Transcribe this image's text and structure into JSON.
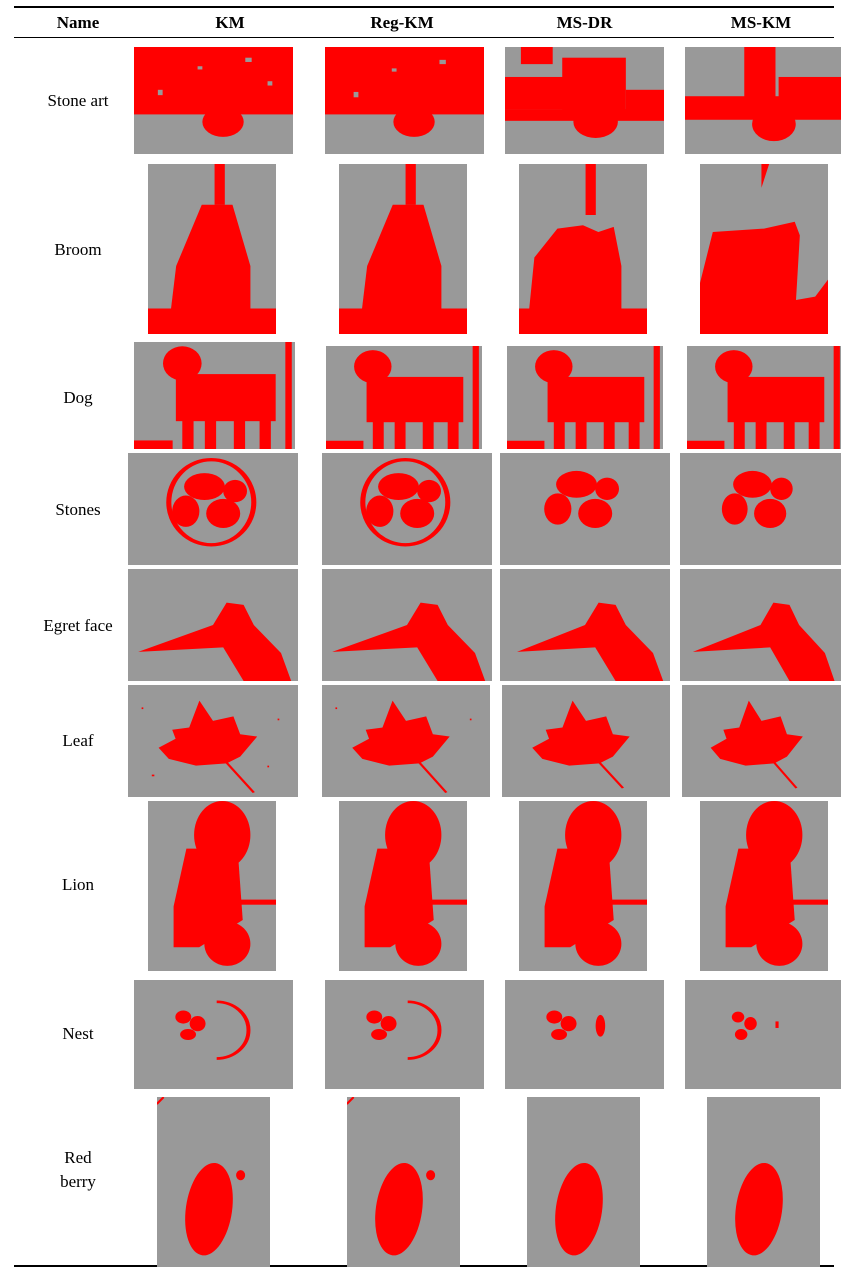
{
  "table": {
    "columns": [
      "Name",
      "KM",
      "Reg-KM",
      "MS-DR",
      "MS-KM"
    ],
    "rows": [
      {
        "name": "Stone art"
      },
      {
        "name": "Broom"
      },
      {
        "name": "Dog"
      },
      {
        "name": "Stones"
      },
      {
        "name": "Egret face"
      },
      {
        "name": "Leaf"
      },
      {
        "name": "Lion"
      },
      {
        "name": "Nest"
      },
      {
        "name": "Red berry",
        "name_lines": [
          "Red",
          "berry"
        ]
      }
    ]
  },
  "colors": {
    "background": "#999999",
    "foreground": "#ff0000"
  }
}
